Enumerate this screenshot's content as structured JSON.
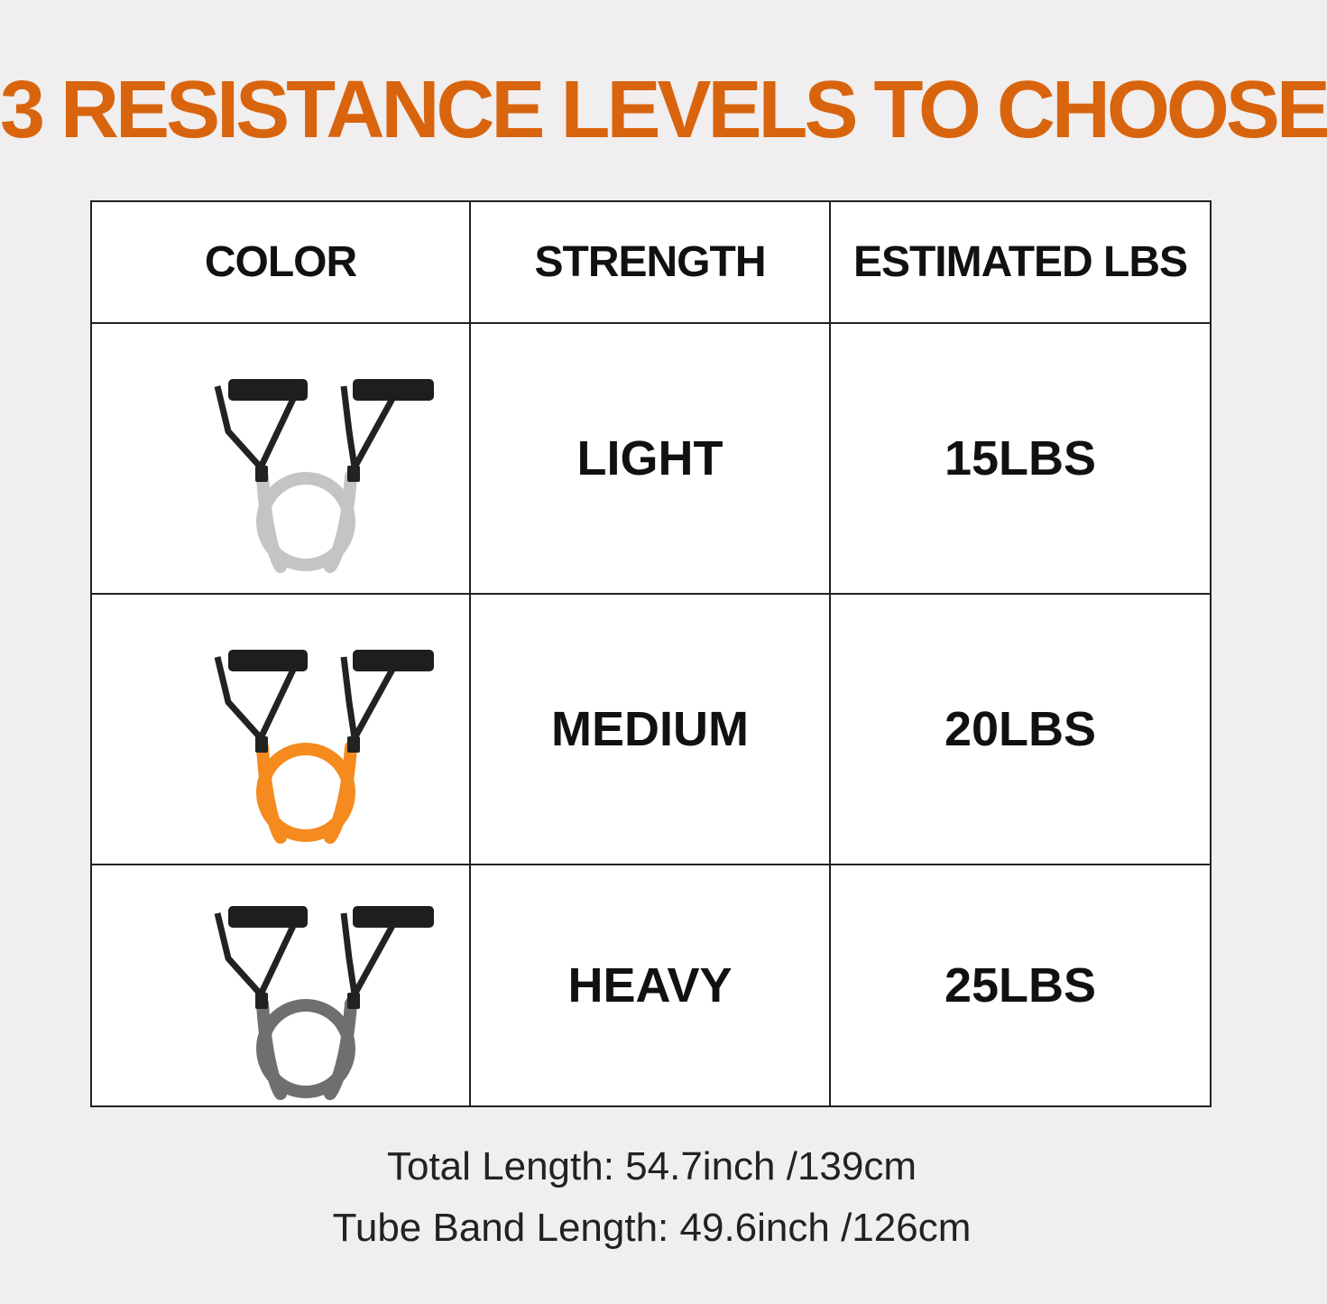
{
  "title": "3 RESISTANCE LEVELS TO CHOOSE",
  "colors": {
    "accent": "#d9640e",
    "background": "#f0eeee"
  },
  "table": {
    "headers": [
      "COLOR",
      "STRENGTH",
      "ESTIMATED LBS"
    ],
    "rows": [
      {
        "band_color": "#c4c4c4",
        "band_icon": "light-gray-resistance-band",
        "strength": "LIGHT",
        "lbs": "15LBS"
      },
      {
        "band_color": "#f58a1f",
        "band_icon": "orange-resistance-band",
        "strength": "MEDIUM",
        "lbs": "20LBS"
      },
      {
        "band_color": "#6f6f6f",
        "band_icon": "dark-gray-resistance-band",
        "strength": "HEAVY",
        "lbs": "25LBS"
      }
    ]
  },
  "footer": {
    "total_length": "Total Length: 54.7inch /139cm",
    "tube_length": "Tube Band Length: 49.6inch /126cm"
  }
}
